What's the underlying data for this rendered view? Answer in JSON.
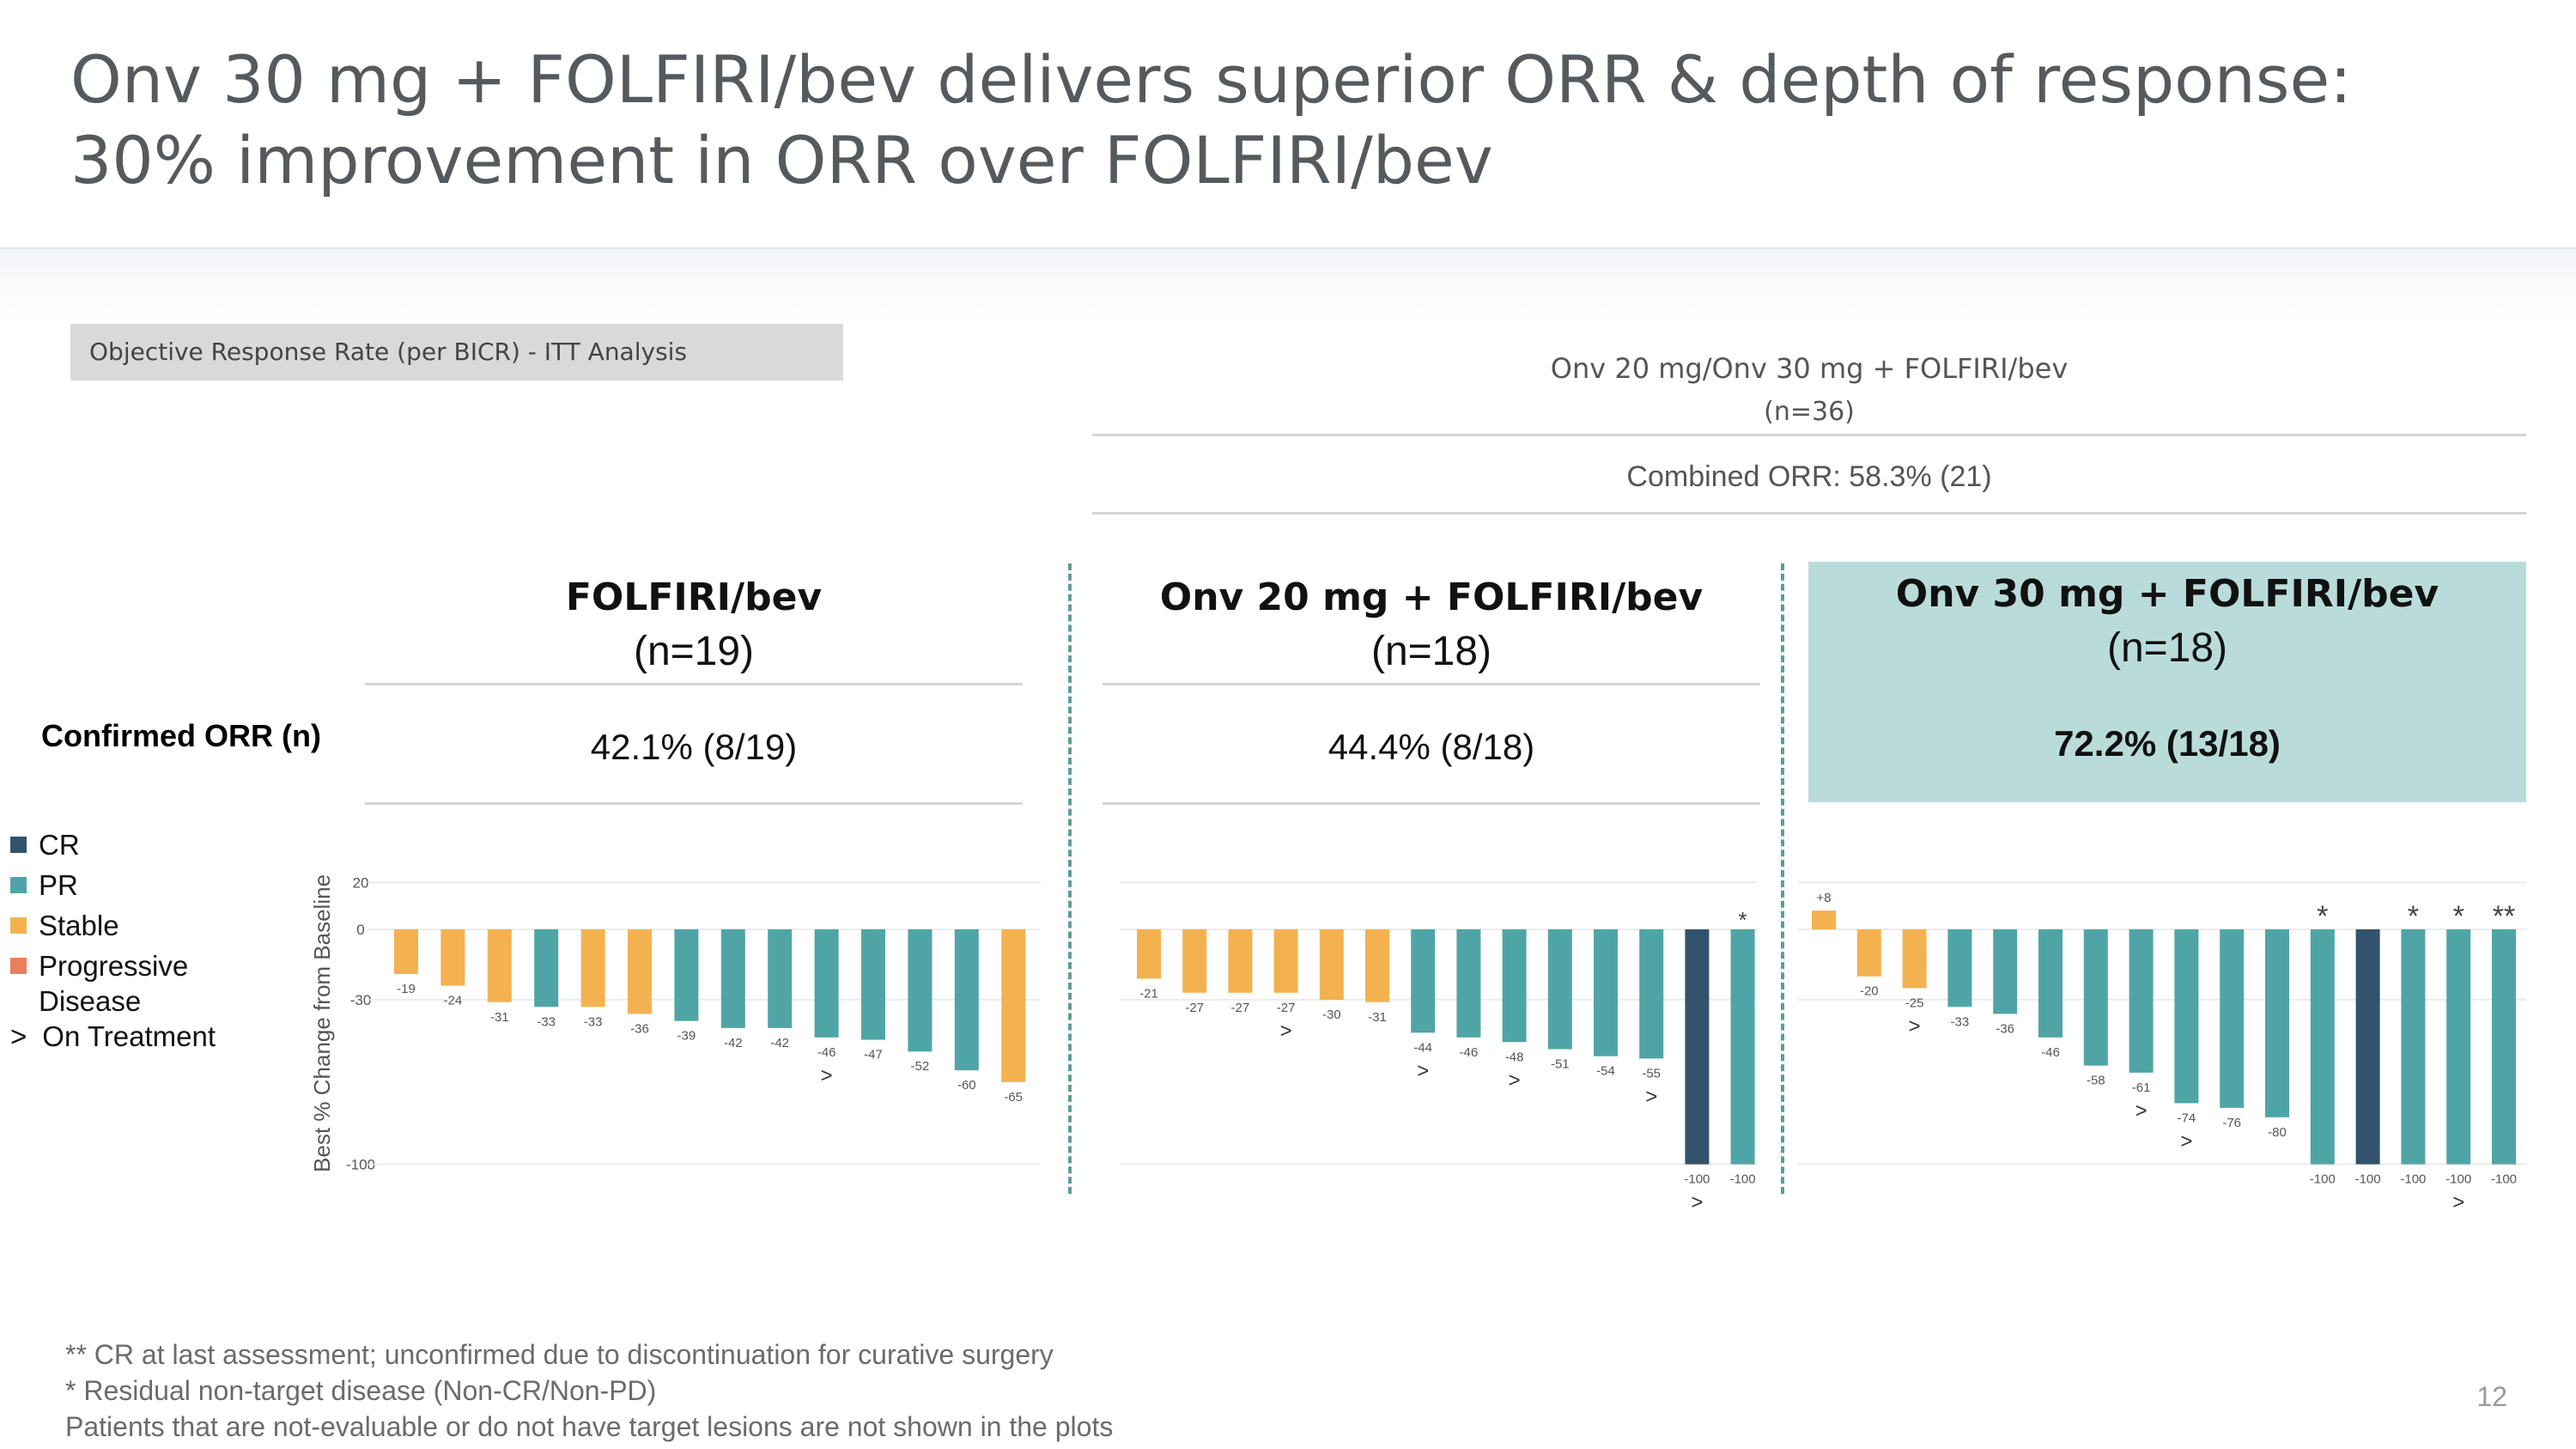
{
  "title": "Onv 30 mg + FOLFIRI/bev delivers superior ORR & depth of response: 30% improvement in ORR over FOLFIRI/bev",
  "orr_box_label": "Objective Response Rate (per BICR)  - ITT Analysis",
  "combined": {
    "title_line1": "Onv 20 mg/Onv 30 mg + FOLFIRI/bev",
    "title_line2": "(n=36)",
    "orr": "Combined ORR: 58.3% (21)"
  },
  "row_label": "Confirmed ORR (n)",
  "panels": [
    {
      "name": "FOLFIRI/bev",
      "n": "(n=19)",
      "orr": "42.1% (8/19)"
    },
    {
      "name": "Onv 20 mg + FOLFIRI/bev",
      "n": "(n=18)",
      "orr": "44.4% (8/18)"
    },
    {
      "name": "Onv 30 mg + FOLFIRI/bev",
      "n": "(n=18)",
      "orr": "72.2% (13/18)"
    }
  ],
  "legend": {
    "cr": "CR",
    "pr": "PR",
    "stable": "Stable",
    "pd_line1": "Progressive",
    "pd_line2": "Disease",
    "on_treatment_symbol": ">",
    "on_treatment": "On Treatment"
  },
  "colors": {
    "CR": "#32536b",
    "PR": "#4fa5a5",
    "Stable": "#f3b24f",
    "PD": "#e8805c",
    "highlight": "#b9dcdb",
    "divider": "#5b9e9a"
  },
  "footnotes": [
    "** CR at last assessment; unconfirmed due to discontinuation for curative surgery",
    "* Residual non-target disease (Non-CR/Non-PD)",
    "Patients that are not-evaluable or do not have target lesions are not shown in the plots"
  ],
  "page_number": "12",
  "chart_data": [
    {
      "type": "bar",
      "title": "FOLFIRI/bev",
      "ylabel": "Best % Change from Baseline",
      "yticks": [
        "20",
        "0",
        "-30",
        "-100"
      ],
      "ylim": [
        -100,
        20
      ],
      "values": [
        -19,
        -24,
        -31,
        -33,
        -33,
        -36,
        -39,
        -42,
        -42,
        -46,
        -47,
        -52,
        -60,
        -65
      ],
      "labels": [
        "-19",
        "-24",
        "-31",
        "-33",
        "-33",
        "-36",
        "-39",
        "-42",
        "-42",
        "-46",
        "-47",
        "-52",
        "-60",
        "-65"
      ],
      "responses": [
        "Stable",
        "Stable",
        "Stable",
        "PR",
        "Stable",
        "Stable",
        "PR",
        "PR",
        "PR",
        "PR",
        "PR",
        "PR",
        "PR",
        "Stable"
      ],
      "on_treatment": [
        false,
        false,
        false,
        false,
        false,
        false,
        false,
        false,
        false,
        true,
        false,
        false,
        false,
        false
      ],
      "marks": [
        "",
        "",
        "",
        "",
        "",
        "",
        "",
        "",
        "",
        "",
        "",
        "",
        "",
        ""
      ]
    },
    {
      "type": "bar",
      "title": "Onv 20 mg + FOLFIRI/bev",
      "ylim": [
        -100,
        20
      ],
      "values": [
        -21,
        -27,
        -27,
        -27,
        -30,
        -31,
        -44,
        -46,
        -48,
        -51,
        -54,
        -55,
        -100,
        -100
      ],
      "labels": [
        "-21",
        "-27",
        "-27",
        "-27",
        "-30",
        "-31",
        "-44",
        "-46",
        "-48",
        "-51",
        "-54",
        "-55",
        "-100",
        "-100"
      ],
      "responses": [
        "Stable",
        "Stable",
        "Stable",
        "Stable",
        "Stable",
        "Stable",
        "PR",
        "PR",
        "PR",
        "PR",
        "PR",
        "PR",
        "CR",
        "PR"
      ],
      "on_treatment": [
        false,
        false,
        false,
        true,
        false,
        false,
        true,
        false,
        true,
        false,
        false,
        true,
        true,
        false
      ],
      "marks": [
        "",
        "",
        "",
        "",
        "",
        "",
        "",
        "",
        "",
        "",
        "",
        "",
        "",
        "*"
      ]
    },
    {
      "type": "bar",
      "title": "Onv 30 mg + FOLFIRI/bev",
      "ylim": [
        -100,
        20
      ],
      "values": [
        8,
        -20,
        -25,
        -33,
        -36,
        -46,
        -58,
        -61,
        -74,
        -76,
        -80,
        -100,
        -100,
        -100,
        -100,
        -100
      ],
      "labels": [
        "+8",
        "-20",
        "-25",
        "-33",
        "-36",
        "-46",
        "-58",
        "-61",
        "-74",
        "-76",
        "-80",
        "-100",
        "-100",
        "-100",
        "-100",
        "-100"
      ],
      "responses": [
        "Stable",
        "Stable",
        "Stable",
        "PR",
        "PR",
        "PR",
        "PR",
        "PR",
        "PR",
        "PR",
        "PR",
        "PR",
        "CR",
        "PR",
        "PR",
        "PR"
      ],
      "on_treatment": [
        false,
        false,
        true,
        false,
        false,
        false,
        false,
        true,
        true,
        false,
        false,
        false,
        false,
        false,
        true,
        false
      ],
      "marks": [
        "",
        "",
        "",
        "",
        "",
        "",
        "",
        "",
        "",
        "",
        "",
        "*",
        "",
        "*",
        "*",
        "**"
      ]
    }
  ]
}
